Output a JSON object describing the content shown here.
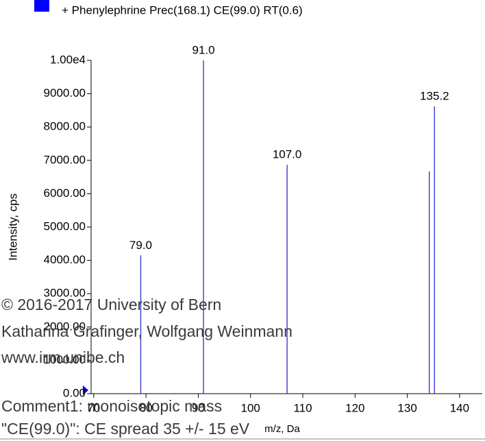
{
  "chart_data": {
    "type": "stick",
    "xlabel": "m/z, Da",
    "ylabel": "Intensity, cps",
    "series": [
      {
        "name": "+ Phenylephrine Prec(168.1) CE(99.0) RT(0.6)",
        "color": "#0000ff",
        "line_color": "#2a2ad0",
        "x": [
          79.0,
          91.0,
          107.0,
          134.2,
          135.2
        ],
        "x_labels": [
          "79.0",
          "91.0",
          "107.0",
          null,
          "135.2"
        ],
        "values": [
          4150,
          10000,
          6870,
          6670,
          8620
        ]
      }
    ],
    "xlim": [
      69.5,
      143.5
    ],
    "ylim": [
      0,
      10000
    ],
    "xticks": [
      70,
      80,
      90,
      100,
      110,
      120,
      130,
      140
    ],
    "yticks": [
      {
        "value": 0,
        "label": "0.00"
      },
      {
        "value": 1000,
        "label": "1000.00"
      },
      {
        "value": 2000,
        "label": "2000.00"
      },
      {
        "value": 3000,
        "label": "3000.00"
      },
      {
        "value": 4000,
        "label": "4000.00"
      },
      {
        "value": 5000,
        "label": "5000.00"
      },
      {
        "value": 6000,
        "label": "6000.00"
      },
      {
        "value": 7000,
        "label": "7000.00"
      },
      {
        "value": 8000,
        "label": "8000.00"
      },
      {
        "value": 9000,
        "label": "9000.00"
      },
      {
        "value": 10000,
        "label": "1.00e4"
      }
    ],
    "annotations": [
      "© 2016-2017 University of Bern",
      "Katharina Grafinger, Wolfgang Weinmann",
      "www.irm.unibe.ch",
      "Comment1: monoisotopic mass",
      "\"CE(99.0)\": CE spread 35 +/- 15 eV"
    ]
  }
}
